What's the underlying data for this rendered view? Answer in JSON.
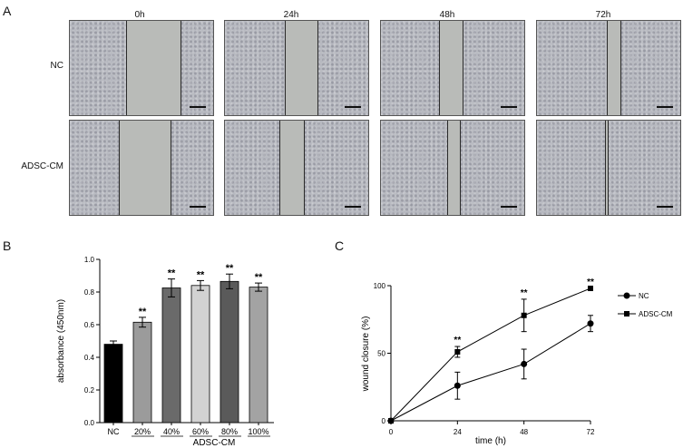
{
  "panels": {
    "a": "A",
    "b": "B",
    "c": "C"
  },
  "micrographs": {
    "time_labels": [
      "0h",
      "24h",
      "48h",
      "72h"
    ],
    "row_labels": [
      "NC",
      "ADSC-CM"
    ]
  },
  "chart_data": [
    {
      "type": "bar",
      "panel": "B",
      "categories": [
        "NC",
        "20%",
        "40%",
        "60%",
        "80%",
        "100%"
      ],
      "values": [
        0.48,
        0.615,
        0.825,
        0.84,
        0.865,
        0.83
      ],
      "errors": [
        0.02,
        0.03,
        0.055,
        0.03,
        0.045,
        0.025
      ],
      "bar_colors": [
        "#000000",
        "#9b9b9b",
        "#6a6a6a",
        "#d2d2d2",
        "#5a5a5a",
        "#a3a3a3"
      ],
      "significance": [
        "",
        "**",
        "**",
        "**",
        "**",
        "**"
      ],
      "group_label": "ADSC-CM",
      "ylabel": "absorbance (450nm)",
      "ylim": [
        0,
        1.0
      ],
      "yticks": [
        "0.0",
        "0.2",
        "0.4",
        "0.6",
        "0.8",
        "1.0"
      ]
    },
    {
      "type": "line",
      "panel": "C",
      "x": [
        0,
        24,
        48,
        72
      ],
      "xticks": [
        "0",
        "24",
        "48",
        "72"
      ],
      "yticks": [
        "0",
        "50",
        "100"
      ],
      "xlabel": "time (h)",
      "ylabel": "wound closure (%)",
      "xlim": [
        0,
        72
      ],
      "ylim": [
        0,
        100
      ],
      "series": [
        {
          "name": "NC",
          "marker": "circle",
          "values": [
            0,
            26,
            42,
            72
          ],
          "errors": [
            0,
            10,
            11,
            6
          ]
        },
        {
          "name": "ADSC-CM",
          "marker": "square",
          "values": [
            0,
            51,
            78,
            98
          ],
          "errors": [
            0,
            4,
            12,
            0
          ]
        }
      ],
      "significance": [
        "",
        "**",
        "**",
        "**"
      ],
      "legend_position": "right"
    }
  ]
}
